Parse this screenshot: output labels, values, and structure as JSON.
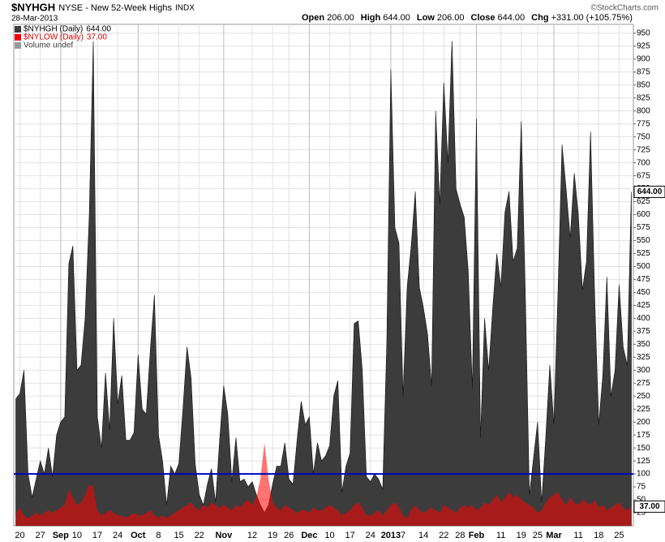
{
  "chart_data": {
    "type": "area",
    "title": "$NYHGH",
    "subtitle": "NYSE - New 52-Week Highs",
    "exchange": "INDX",
    "date": "28-Mar-2013",
    "quote": [
      {
        "label": "Open",
        "value": "206.00"
      },
      {
        "label": "High",
        "value": "644.00"
      },
      {
        "label": "Low",
        "value": "206.00"
      },
      {
        "label": "Close",
        "value": "644.00"
      },
      {
        "label": "Chg",
        "value": "+331.00 (+105.75%)"
      }
    ],
    "credit": "©StockCharts.com",
    "volume_note": "Volume undef",
    "categories": [
      null,
      "20",
      null,
      null,
      null,
      null,
      "27",
      null,
      null,
      null,
      null,
      "Sep",
      null,
      null,
      null,
      "10",
      null,
      null,
      null,
      null,
      "17",
      null,
      null,
      null,
      null,
      "24",
      null,
      null,
      null,
      null,
      "Oct",
      null,
      null,
      null,
      null,
      "8",
      null,
      null,
      null,
      null,
      "15",
      null,
      null,
      null,
      null,
      "22",
      null,
      null,
      null,
      null,
      null,
      "Nov",
      null,
      null,
      null,
      null,
      null,
      null,
      "12",
      null,
      null,
      null,
      null,
      "19",
      null,
      null,
      null,
      "26",
      null,
      null,
      null,
      null,
      "Dec",
      null,
      null,
      null,
      null,
      "10",
      null,
      null,
      null,
      null,
      "17",
      null,
      null,
      null,
      null,
      "24",
      null,
      null,
      null,
      null,
      "2013",
      null,
      null,
      "7",
      null,
      null,
      null,
      null,
      "14",
      null,
      null,
      null,
      null,
      "22",
      null,
      null,
      null,
      "28",
      null,
      null,
      null,
      "Feb",
      null,
      null,
      null,
      null,
      null,
      "11",
      null,
      null,
      null,
      null,
      "19",
      null,
      null,
      null,
      "25",
      null,
      null,
      null,
      "Mar",
      null,
      null,
      null,
      null,
      null,
      "11",
      null,
      null,
      null,
      null,
      "18",
      null,
      null,
      null,
      null,
      "25",
      null,
      null,
      null
    ],
    "series": [
      {
        "name": "$NYHGH (Daily)",
        "last_label": "644.00",
        "color": "#3c3c3c",
        "values": [
          245,
          255,
          300,
          100,
          55,
          90,
          125,
          100,
          150,
          95,
          175,
          200,
          210,
          505,
          540,
          300,
          310,
          400,
          595,
          935,
          210,
          150,
          295,
          185,
          400,
          235,
          290,
          165,
          165,
          180,
          330,
          225,
          215,
          340,
          445,
          175,
          125,
          40,
          115,
          100,
          120,
          225,
          345,
          285,
          120,
          60,
          40,
          80,
          110,
          45,
          165,
          270,
          215,
          85,
          170,
          85,
          90,
          75,
          85,
          60,
          40,
          25,
          40,
          80,
          115,
          115,
          160,
          90,
          80,
          165,
          240,
          195,
          210,
          100,
          160,
          125,
          135,
          155,
          250,
          280,
          65,
          115,
          140,
          390,
          395,
          300,
          95,
          85,
          100,
          90,
          70,
          350,
          880,
          575,
          545,
          250,
          460,
          540,
          645,
          460,
          420,
          370,
          270,
          800,
          620,
          855,
          700,
          935,
          650,
          620,
          595,
          490,
          265,
          785,
          170,
          400,
          300,
          420,
          525,
          460,
          605,
          645,
          510,
          535,
          780,
          445,
          60,
          130,
          200,
          45,
          170,
          310,
          195,
          450,
          735,
          650,
          555,
          680,
          600,
          455,
          510,
          760,
          445,
          195,
          290,
          480,
          250,
          300,
          465,
          345,
          310,
          644
        ]
      },
      {
        "name": "$NYLOW (Daily)",
        "last_label": "37.00",
        "color": "#ff0000",
        "values": [
          25,
          35,
          20,
          15,
          20,
          25,
          20,
          25,
          30,
          25,
          30,
          35,
          40,
          70,
          55,
          40,
          45,
          60,
          80,
          75,
          30,
          20,
          25,
          30,
          25,
          20,
          20,
          15,
          20,
          25,
          20,
          20,
          25,
          30,
          20,
          15,
          20,
          15,
          20,
          25,
          30,
          35,
          40,
          45,
          35,
          30,
          40,
          35,
          45,
          40,
          35,
          40,
          35,
          30,
          40,
          35,
          45,
          50,
          40,
          55,
          90,
          160,
          90,
          45,
          35,
          30,
          40,
          35,
          30,
          25,
          30,
          30,
          25,
          35,
          30,
          30,
          35,
          40,
          35,
          30,
          20,
          25,
          30,
          40,
          45,
          35,
          20,
          20,
          25,
          30,
          20,
          30,
          40,
          45,
          35,
          20,
          15,
          30,
          40,
          30,
          25,
          30,
          35,
          30,
          25,
          40,
          35,
          30,
          25,
          35,
          40,
          35,
          40,
          30,
          35,
          45,
          40,
          50,
          60,
          45,
          55,
          65,
          55,
          60,
          50,
          45,
          40,
          35,
          25,
          30,
          45,
          55,
          60,
          65,
          50,
          40,
          55,
          45,
          40,
          50,
          45,
          40,
          50,
          35,
          40,
          30,
          35,
          40,
          45,
          35,
          30,
          37
        ]
      }
    ],
    "reference_line": {
      "value": 100,
      "color": "#0000c0"
    },
    "ylim": [
      0,
      967
    ],
    "yticks": [
      25,
      50,
      75,
      100,
      125,
      150,
      175,
      200,
      225,
      250,
      275,
      300,
      325,
      350,
      375,
      400,
      425,
      450,
      475,
      500,
      525,
      550,
      575,
      600,
      625,
      650,
      675,
      700,
      725,
      750,
      775,
      800,
      825,
      850,
      875,
      900,
      925,
      950
    ],
    "grid": true
  }
}
